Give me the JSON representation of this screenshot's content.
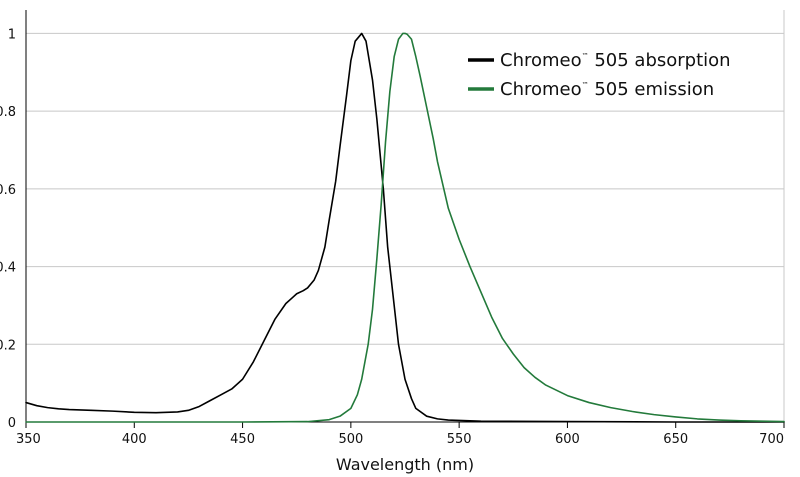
{
  "chart_data": {
    "type": "line",
    "title": "",
    "xlabel": "Wavelength (nm)",
    "ylabel": "",
    "xlim": [
      350,
      700
    ],
    "ylim": [
      0,
      1.05
    ],
    "x_ticks": [
      350,
      400,
      450,
      500,
      550,
      600,
      650,
      700
    ],
    "y_ticks": [
      0,
      0.2,
      0.4,
      0.6,
      0.8,
      1
    ],
    "y_tick_labels": [
      "0",
      "0.2",
      "0.4",
      "0.6",
      "0.8",
      "1"
    ],
    "grid": "horizontal",
    "legend_position": "top-right",
    "series": [
      {
        "name": "Chromeo™ 505 absorption",
        "legend_main": "Chromeo",
        "legend_tm": "™",
        "legend_rest": " 505 absorption",
        "color": "#000000",
        "x": [
          350,
          355,
          360,
          365,
          370,
          380,
          390,
          400,
          410,
          420,
          425,
          430,
          435,
          440,
          445,
          450,
          455,
          460,
          465,
          470,
          473,
          475,
          478,
          480,
          483,
          485,
          488,
          490,
          493,
          495,
          498,
          500,
          502,
          505,
          507,
          510,
          512,
          515,
          517,
          520,
          522,
          525,
          528,
          530,
          535,
          540,
          545,
          550,
          560,
          600,
          650,
          700
        ],
        "y": [
          0.05,
          0.042,
          0.037,
          0.034,
          0.032,
          0.03,
          0.028,
          0.025,
          0.024,
          0.026,
          0.03,
          0.04,
          0.055,
          0.07,
          0.085,
          0.11,
          0.155,
          0.21,
          0.265,
          0.305,
          0.32,
          0.33,
          0.338,
          0.345,
          0.365,
          0.39,
          0.45,
          0.52,
          0.62,
          0.71,
          0.84,
          0.93,
          0.98,
          1.0,
          0.98,
          0.88,
          0.78,
          0.6,
          0.45,
          0.3,
          0.2,
          0.11,
          0.06,
          0.035,
          0.015,
          0.008,
          0.005,
          0.004,
          0.002,
          0.001,
          0.0,
          0.0
        ]
      },
      {
        "name": "Chromeo™ 505 emission",
        "legend_main": "Chromeo",
        "legend_tm": "™",
        "legend_rest": " 505 emission",
        "color": "#237a3b",
        "x": [
          350,
          400,
          450,
          480,
          490,
          495,
          500,
          503,
          505,
          508,
          510,
          512,
          514,
          516,
          518,
          520,
          522,
          524,
          525,
          526,
          528,
          530,
          532,
          535,
          538,
          540,
          545,
          550,
          555,
          560,
          565,
          570,
          575,
          580,
          585,
          590,
          600,
          610,
          620,
          630,
          640,
          650,
          660,
          670,
          680,
          690,
          700
        ],
        "y": [
          0.0,
          0.0,
          0.0,
          0.001,
          0.006,
          0.015,
          0.035,
          0.07,
          0.11,
          0.2,
          0.29,
          0.42,
          0.56,
          0.72,
          0.85,
          0.94,
          0.985,
          1.0,
          1.0,
          0.998,
          0.985,
          0.94,
          0.89,
          0.81,
          0.73,
          0.67,
          0.55,
          0.47,
          0.4,
          0.335,
          0.27,
          0.215,
          0.175,
          0.14,
          0.115,
          0.095,
          0.068,
          0.05,
          0.037,
          0.027,
          0.019,
          0.013,
          0.008,
          0.005,
          0.003,
          0.002,
          0.001
        ]
      }
    ]
  }
}
